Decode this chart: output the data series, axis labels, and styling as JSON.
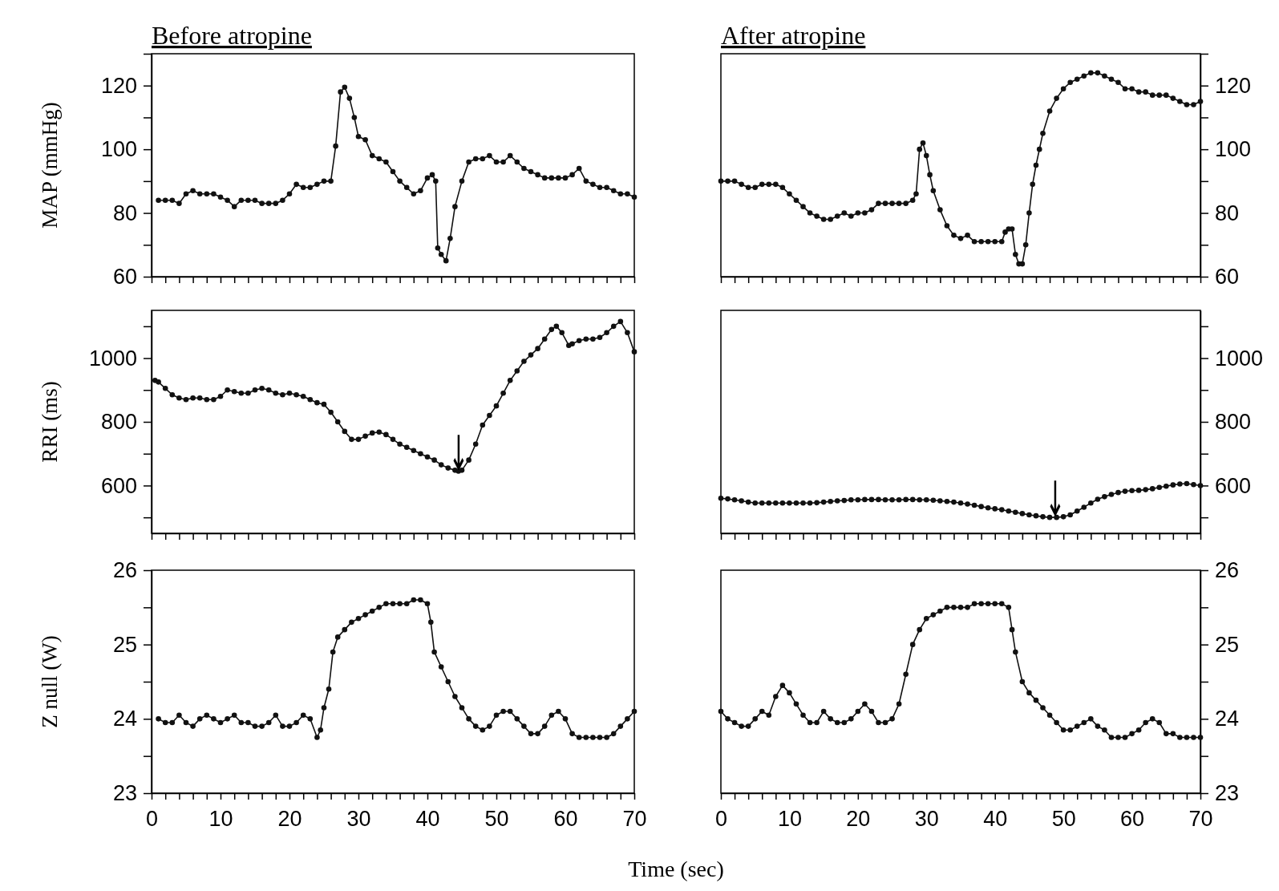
{
  "chart_data": [
    {
      "type": "line",
      "title": "Before atropine",
      "ylabel": "MAP (mmHg)",
      "xlim": [
        0,
        70
      ],
      "ylim": [
        60,
        130
      ],
      "yticks": [
        60,
        {
          "value": 70,
          "label": null
        },
        80,
        {
          "value": 90,
          "label": null
        },
        100,
        {
          "value": 110,
          "label": null
        },
        120,
        {
          "value": 130,
          "label": null
        }
      ],
      "xticks": [
        0,
        2,
        4,
        6,
        8,
        10,
        12,
        14,
        16,
        18,
        20,
        22,
        24,
        26,
        28,
        30,
        32,
        34,
        36,
        38,
        40,
        42,
        44,
        46,
        48,
        50,
        52,
        54,
        56,
        58,
        60,
        62,
        64,
        66,
        68,
        70
      ],
      "tick_labels": "y",
      "grid": false,
      "marker": "circle",
      "line_style": "solid",
      "series": [
        {
          "color": "#111111",
          "x": [
            1,
            2,
            3,
            4,
            5,
            6,
            7,
            8,
            9,
            10,
            11,
            12,
            13,
            14,
            15,
            16,
            17,
            18,
            19,
            20,
            21,
            22,
            23,
            24,
            25,
            26,
            26.7,
            27.4,
            28,
            28.7,
            29.4,
            30,
            31,
            32,
            33,
            34,
            35,
            36,
            37,
            38,
            39,
            40,
            40.7,
            41.2,
            41.5,
            42,
            42.7,
            43.3,
            44,
            45,
            46,
            47,
            48,
            49,
            50,
            51,
            52,
            53,
            54,
            55,
            56,
            57,
            58,
            59,
            60,
            61,
            62,
            63,
            64,
            65,
            66,
            67,
            68,
            69,
            70
          ],
          "values": [
            84,
            84,
            84,
            83,
            86,
            87,
            86,
            86,
            86,
            85,
            84,
            82,
            84,
            84,
            84,
            83,
            83,
            83,
            84,
            86,
            89,
            88,
            88,
            89,
            90,
            90,
            101,
            118,
            119.5,
            116,
            110,
            104,
            103,
            98,
            97,
            96,
            93,
            90,
            88,
            86,
            87,
            91,
            92,
            90,
            69,
            67,
            65,
            72,
            82,
            90,
            96,
            97,
            97,
            98,
            96,
            96,
            98,
            96,
            94,
            93,
            92,
            91,
            91,
            91,
            91,
            92,
            94,
            90,
            89,
            88,
            88,
            87,
            86,
            86,
            85
          ]
        }
      ]
    },
    {
      "type": "line",
      "title": "After atropine",
      "xlim": [
        0,
        70
      ],
      "ylim": [
        60,
        130
      ],
      "yticks": [
        60,
        {
          "value": 70,
          "label": null
        },
        80,
        {
          "value": 90,
          "label": null
        },
        100,
        {
          "value": 110,
          "label": null
        },
        120,
        {
          "value": 130,
          "label": null
        }
      ],
      "xticks": [
        0,
        2,
        4,
        6,
        8,
        10,
        12,
        14,
        16,
        18,
        20,
        22,
        24,
        26,
        28,
        30,
        32,
        34,
        36,
        38,
        40,
        42,
        44,
        46,
        48,
        50,
        52,
        54,
        56,
        58,
        60,
        62,
        64,
        66,
        68,
        70
      ],
      "tick_labels": "y",
      "grid": false,
      "marker": "circle",
      "line_style": "solid",
      "series": [
        {
          "color": "#111111",
          "x": [
            0,
            1,
            2,
            3,
            4,
            5,
            6,
            7,
            8,
            9,
            10,
            11,
            12,
            13,
            14,
            15,
            16,
            17,
            18,
            19,
            20,
            21,
            22,
            23,
            24,
            25,
            26,
            27,
            28,
            28.5,
            29,
            29.5,
            30,
            30.5,
            31,
            32,
            33,
            34,
            35,
            36,
            37,
            38,
            39,
            40,
            41,
            41.5,
            42,
            42.5,
            43,
            43.5,
            44,
            44.5,
            45,
            45.5,
            46,
            46.5,
            47,
            48,
            49,
            50,
            51,
            52,
            53,
            54,
            55,
            56,
            57,
            58,
            59,
            60,
            61,
            62,
            63,
            64,
            65,
            66,
            67,
            68,
            69,
            70
          ],
          "values": [
            90,
            90,
            90,
            89,
            88,
            88,
            89,
            89,
            89,
            88,
            86,
            84,
            82,
            80,
            79,
            78,
            78,
            79,
            80,
            79,
            80,
            80,
            81,
            83,
            83,
            83,
            83,
            83,
            84,
            86,
            100,
            102,
            98,
            92,
            87,
            81,
            76,
            73,
            72,
            73,
            71,
            71,
            71,
            71,
            71,
            74,
            75,
            75,
            67,
            64,
            64,
            70,
            80,
            89,
            95,
            100,
            105,
            112,
            116,
            119,
            121,
            122,
            123,
            124,
            124,
            123,
            122,
            121,
            119,
            119,
            118,
            118,
            117,
            117,
            117,
            116,
            115,
            114,
            114,
            115
          ]
        }
      ]
    },
    {
      "type": "line",
      "ylabel": "RRI (ms)",
      "xlim": [
        0,
        70
      ],
      "ylim": [
        450,
        1150
      ],
      "yticks": [
        {
          "value": 500,
          "label": null
        },
        600,
        {
          "value": 700,
          "label": null
        },
        800,
        {
          "value": 900,
          "label": null
        },
        1000,
        {
          "value": 1100,
          "label": null
        }
      ],
      "xticks": [
        0,
        2,
        4,
        6,
        8,
        10,
        12,
        14,
        16,
        18,
        20,
        22,
        24,
        26,
        28,
        30,
        32,
        34,
        36,
        38,
        40,
        42,
        44,
        46,
        48,
        50,
        52,
        54,
        56,
        58,
        60,
        62,
        64,
        66,
        68,
        70
      ],
      "tick_labels": "y",
      "grid": false,
      "marker": "circle",
      "line_style": "solid",
      "annotations": [
        {
          "text": "↓",
          "x": 44.5,
          "y": 645
        }
      ],
      "series": [
        {
          "color": "#111111",
          "x": [
            0.5,
            1,
            2,
            3,
            4,
            5,
            6,
            7,
            8,
            9,
            10,
            11,
            12,
            13,
            14,
            15,
            16,
            17,
            18,
            19,
            20,
            21,
            22,
            23,
            24,
            25,
            26,
            27,
            28,
            29,
            30,
            31,
            32,
            33,
            34,
            35,
            36,
            37,
            38,
            39,
            40,
            41,
            42,
            43,
            44,
            44.5,
            45,
            46,
            47,
            48,
            49,
            50,
            51,
            52,
            53,
            54,
            55,
            56,
            57,
            58,
            58.7,
            59.5,
            60.5,
            61,
            62,
            63,
            64,
            65,
            66,
            67,
            68,
            69,
            70
          ],
          "values": [
            930,
            925,
            905,
            885,
            875,
            870,
            875,
            875,
            870,
            870,
            880,
            900,
            895,
            890,
            890,
            900,
            905,
            900,
            890,
            885,
            890,
            885,
            880,
            870,
            860,
            855,
            830,
            800,
            770,
            745,
            745,
            755,
            765,
            768,
            760,
            745,
            730,
            720,
            710,
            700,
            690,
            680,
            665,
            655,
            648,
            645,
            648,
            680,
            730,
            790,
            820,
            850,
            890,
            930,
            960,
            990,
            1010,
            1030,
            1060,
            1090,
            1100,
            1080,
            1040,
            1045,
            1055,
            1060,
            1060,
            1065,
            1080,
            1100,
            1115,
            1080,
            1020
          ]
        }
      ]
    },
    {
      "type": "line",
      "xlim": [
        0,
        70
      ],
      "ylim": [
        450,
        1150
      ],
      "yticks": [
        {
          "value": 500,
          "label": null
        },
        600,
        {
          "value": 700,
          "label": null
        },
        800,
        {
          "value": 900,
          "label": null
        },
        1000,
        {
          "value": 1100,
          "label": null
        }
      ],
      "xticks": [
        0,
        2,
        4,
        6,
        8,
        10,
        12,
        14,
        16,
        18,
        20,
        22,
        24,
        26,
        28,
        30,
        32,
        34,
        36,
        38,
        40,
        42,
        44,
        46,
        48,
        50,
        52,
        54,
        56,
        58,
        60,
        62,
        64,
        66,
        68,
        70
      ],
      "tick_labels": "y",
      "grid": false,
      "marker": "circle",
      "line_style": "solid",
      "annotations": [
        {
          "text": "↓",
          "x": 48.8,
          "y": 500
        }
      ],
      "series": [
        {
          "color": "#111111",
          "x": [
            0,
            1,
            2,
            3,
            4,
            5,
            6,
            7,
            8,
            9,
            10,
            11,
            12,
            13,
            14,
            15,
            16,
            17,
            18,
            19,
            20,
            21,
            22,
            23,
            24,
            25,
            26,
            27,
            28,
            29,
            30,
            31,
            32,
            33,
            34,
            35,
            36,
            37,
            38,
            39,
            40,
            41,
            42,
            43,
            44,
            45,
            46,
            47,
            48,
            49,
            50,
            51,
            52,
            53,
            54,
            55,
            56,
            57,
            58,
            59,
            60,
            61,
            62,
            63,
            64,
            65,
            66,
            67,
            68,
            69,
            70
          ],
          "values": [
            560,
            558,
            555,
            552,
            548,
            545,
            545,
            545,
            545,
            545,
            545,
            545,
            545,
            545,
            546,
            548,
            550,
            552,
            553,
            555,
            555,
            556,
            556,
            556,
            555,
            555,
            555,
            556,
            556,
            555,
            555,
            554,
            552,
            550,
            548,
            545,
            542,
            538,
            534,
            530,
            527,
            524,
            520,
            516,
            512,
            508,
            505,
            502,
            500,
            500,
            502,
            508,
            520,
            532,
            545,
            557,
            565,
            572,
            578,
            582,
            584,
            585,
            587,
            590,
            594,
            598,
            602,
            605,
            606,
            603,
            600
          ]
        }
      ]
    },
    {
      "type": "line",
      "ylabel": "Z null (W)",
      "xlabel": "Time (sec)",
      "xlim": [
        0,
        70
      ],
      "ylim": [
        23,
        26
      ],
      "yticks": [
        23,
        {
          "value": 23.5,
          "label": null
        },
        24,
        {
          "value": 24.5,
          "label": null
        },
        25,
        {
          "value": 25.5,
          "label": null
        },
        26
      ],
      "xticks": [
        0,
        {
          "value": 2,
          "label": null
        },
        {
          "value": 4,
          "label": null
        },
        {
          "value": 6,
          "label": null
        },
        {
          "value": 8,
          "label": null
        },
        10,
        {
          "value": 12,
          "label": null
        },
        {
          "value": 14,
          "label": null
        },
        {
          "value": 16,
          "label": null
        },
        {
          "value": 18,
          "label": null
        },
        20,
        {
          "value": 22,
          "label": null
        },
        {
          "value": 24,
          "label": null
        },
        {
          "value": 26,
          "label": null
        },
        {
          "value": 28,
          "label": null
        },
        30,
        {
          "value": 32,
          "label": null
        },
        {
          "value": 34,
          "label": null
        },
        {
          "value": 36,
          "label": null
        },
        {
          "value": 38,
          "label": null
        },
        40,
        {
          "value": 42,
          "label": null
        },
        {
          "value": 44,
          "label": null
        },
        {
          "value": 46,
          "label": null
        },
        {
          "value": 48,
          "label": null
        },
        50,
        {
          "value": 52,
          "label": null
        },
        {
          "value": 54,
          "label": null
        },
        {
          "value": 56,
          "label": null
        },
        {
          "value": 58,
          "label": null
        },
        60,
        {
          "value": 62,
          "label": null
        },
        {
          "value": 64,
          "label": null
        },
        {
          "value": 66,
          "label": null
        },
        {
          "value": 68,
          "label": null
        },
        70
      ],
      "grid": false,
      "marker": "circle",
      "line_style": "solid",
      "series": [
        {
          "color": "#111111",
          "x": [
            1,
            2,
            3,
            4,
            5,
            6,
            7,
            8,
            9,
            10,
            11,
            12,
            13,
            14,
            15,
            16,
            17,
            18,
            19,
            20,
            21,
            22,
            23,
            24,
            24.5,
            25,
            25.7,
            26.3,
            27,
            28,
            29,
            30,
            31,
            32,
            33,
            34,
            35,
            36,
            37,
            38,
            39,
            40,
            40.5,
            41,
            42,
            43,
            44,
            45,
            46,
            47,
            48,
            49,
            50,
            51,
            52,
            53,
            54,
            55,
            56,
            57,
            58,
            59,
            60,
            61,
            62,
            63,
            64,
            65,
            66,
            67,
            68,
            69,
            70
          ],
          "values": [
            24.0,
            23.95,
            23.95,
            24.05,
            23.95,
            23.9,
            24.0,
            24.05,
            24.0,
            23.95,
            24.0,
            24.05,
            23.95,
            23.95,
            23.9,
            23.9,
            23.95,
            24.05,
            23.9,
            23.9,
            23.95,
            24.05,
            24.0,
            23.75,
            23.85,
            24.15,
            24.4,
            24.9,
            25.1,
            25.2,
            25.3,
            25.35,
            25.4,
            25.45,
            25.5,
            25.55,
            25.55,
            25.55,
            25.55,
            25.6,
            25.6,
            25.55,
            25.3,
            24.9,
            24.7,
            24.5,
            24.3,
            24.15,
            24.0,
            23.9,
            23.85,
            23.9,
            24.05,
            24.1,
            24.1,
            24.0,
            23.9,
            23.8,
            23.8,
            23.9,
            24.05,
            24.1,
            24.0,
            23.8,
            23.75,
            23.75,
            23.75,
            23.75,
            23.75,
            23.8,
            23.9,
            24.0,
            24.1
          ]
        }
      ]
    },
    {
      "type": "line",
      "xlim": [
        0,
        70
      ],
      "ylim": [
        23,
        26
      ],
      "yticks": [
        23,
        {
          "value": 23.5,
          "label": null
        },
        24,
        {
          "value": 24.5,
          "label": null
        },
        25,
        {
          "value": 25.5,
          "label": null
        },
        26
      ],
      "xticks": [
        0,
        {
          "value": 2,
          "label": null
        },
        {
          "value": 4,
          "label": null
        },
        {
          "value": 6,
          "label": null
        },
        {
          "value": 8,
          "label": null
        },
        10,
        {
          "value": 12,
          "label": null
        },
        {
          "value": 14,
          "label": null
        },
        {
          "value": 16,
          "label": null
        },
        {
          "value": 18,
          "label": null
        },
        20,
        {
          "value": 22,
          "label": null
        },
        {
          "value": 24,
          "label": null
        },
        {
          "value": 26,
          "label": null
        },
        {
          "value": 28,
          "label": null
        },
        30,
        {
          "value": 32,
          "label": null
        },
        {
          "value": 34,
          "label": null
        },
        {
          "value": 36,
          "label": null
        },
        {
          "value": 38,
          "label": null
        },
        40,
        {
          "value": 42,
          "label": null
        },
        {
          "value": 44,
          "label": null
        },
        {
          "value": 46,
          "label": null
        },
        {
          "value": 48,
          "label": null
        },
        50,
        {
          "value": 52,
          "label": null
        },
        {
          "value": 54,
          "label": null
        },
        {
          "value": 56,
          "label": null
        },
        {
          "value": 58,
          "label": null
        },
        60,
        {
          "value": 62,
          "label": null
        },
        {
          "value": 64,
          "label": null
        },
        {
          "value": 66,
          "label": null
        },
        {
          "value": 68,
          "label": null
        },
        70
      ],
      "grid": false,
      "marker": "circle",
      "line_style": "solid",
      "series": [
        {
          "color": "#111111",
          "x": [
            0,
            1,
            2,
            3,
            4,
            5,
            6,
            7,
            8,
            9,
            10,
            11,
            12,
            13,
            14,
            15,
            16,
            17,
            18,
            19,
            20,
            21,
            22,
            23,
            24,
            25,
            26,
            27,
            28,
            29,
            30,
            31,
            32,
            33,
            34,
            35,
            36,
            37,
            38,
            39,
            40,
            41,
            42,
            42.5,
            43,
            44,
            45,
            46,
            47,
            48,
            49,
            50,
            51,
            52,
            53,
            54,
            55,
            56,
            57,
            58,
            59,
            60,
            61,
            62,
            63,
            64,
            65,
            66,
            67,
            68,
            69,
            70
          ],
          "values": [
            24.1,
            24.0,
            23.95,
            23.9,
            23.9,
            24.0,
            24.1,
            24.05,
            24.3,
            24.45,
            24.35,
            24.2,
            24.05,
            23.95,
            23.95,
            24.1,
            24.0,
            23.95,
            23.95,
            24.0,
            24.1,
            24.2,
            24.1,
            23.95,
            23.95,
            24.0,
            24.2,
            24.6,
            25.0,
            25.2,
            25.35,
            25.4,
            25.45,
            25.5,
            25.5,
            25.5,
            25.5,
            25.55,
            25.55,
            25.55,
            25.55,
            25.55,
            25.5,
            25.2,
            24.9,
            24.5,
            24.35,
            24.25,
            24.15,
            24.05,
            23.95,
            23.85,
            23.85,
            23.9,
            23.95,
            24.0,
            23.9,
            23.85,
            23.75,
            23.75,
            23.75,
            23.8,
            23.85,
            23.95,
            24.0,
            23.95,
            23.8,
            23.8,
            23.75,
            23.75,
            23.75,
            23.75
          ]
        }
      ]
    }
  ]
}
